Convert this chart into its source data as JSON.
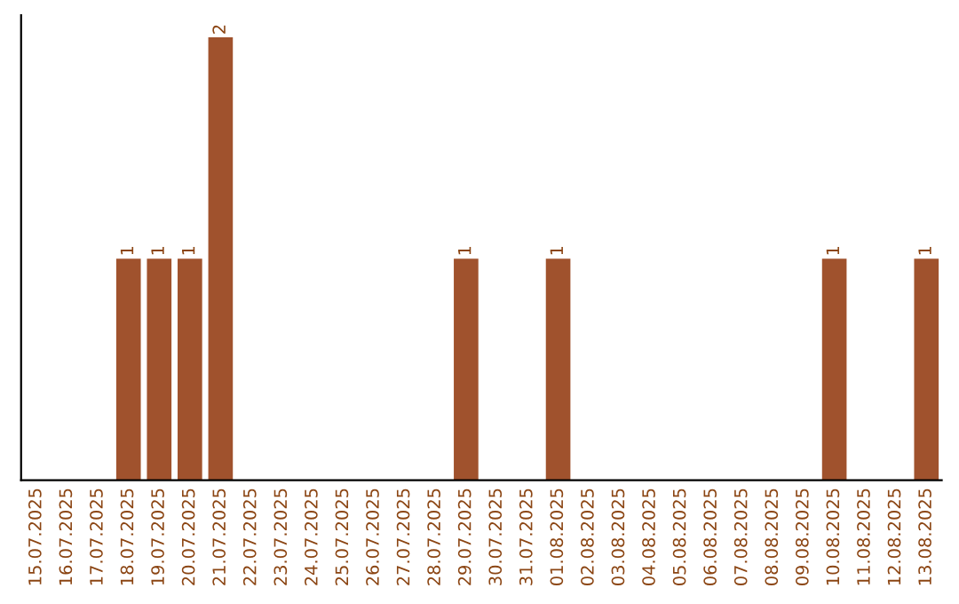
{
  "chart_data": {
    "type": "bar",
    "categories": [
      "15.07.2025",
      "16.07.2025",
      "17.07.2025",
      "18.07.2025",
      "19.07.2025",
      "20.07.2025",
      "21.07.2025",
      "22.07.2025",
      "23.07.2025",
      "24.07.2025",
      "25.07.2025",
      "26.07.2025",
      "27.07.2025",
      "28.07.2025",
      "29.07.2025",
      "30.07.2025",
      "31.07.2025",
      "01.08.2025",
      "02.08.2025",
      "03.08.2025",
      "04.08.2025",
      "05.08.2025",
      "06.08.2025",
      "07.08.2025",
      "08.08.2025",
      "09.08.2025",
      "10.08.2025",
      "11.08.2025",
      "12.08.2025",
      "13.08.2025"
    ],
    "values": [
      0,
      0,
      0,
      1,
      1,
      1,
      2,
      0,
      0,
      0,
      0,
      0,
      0,
      0,
      1,
      0,
      0,
      1,
      0,
      0,
      0,
      0,
      0,
      0,
      0,
      0,
      1,
      0,
      0,
      1
    ],
    "value_labels": [
      null,
      null,
      null,
      "1",
      "1",
      "1",
      "2",
      null,
      null,
      null,
      null,
      null,
      null,
      null,
      "1",
      null,
      null,
      "1",
      null,
      null,
      null,
      null,
      null,
      null,
      null,
      null,
      "1",
      null,
      null,
      "1"
    ],
    "color": "#a0522d",
    "grid": false,
    "legend": false
  }
}
